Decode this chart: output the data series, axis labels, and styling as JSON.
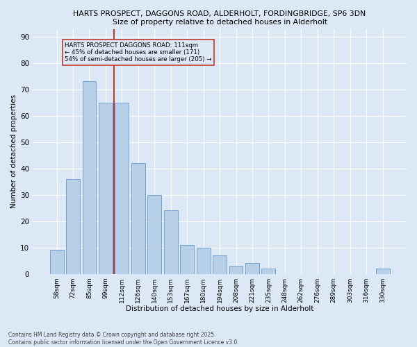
{
  "title1": "HARTS PROSPECT, DAGGONS ROAD, ALDERHOLT, FORDINGBRIDGE, SP6 3DN",
  "title2": "Size of property relative to detached houses in Alderholt",
  "xlabel": "Distribution of detached houses by size in Alderholt",
  "ylabel": "Number of detached properties",
  "categories": [
    "58sqm",
    "72sqm",
    "85sqm",
    "99sqm",
    "112sqm",
    "126sqm",
    "140sqm",
    "153sqm",
    "167sqm",
    "180sqm",
    "194sqm",
    "208sqm",
    "221sqm",
    "235sqm",
    "248sqm",
    "262sqm",
    "276sqm",
    "289sqm",
    "303sqm",
    "316sqm",
    "330sqm"
  ],
  "values": [
    9,
    36,
    73,
    65,
    65,
    42,
    30,
    24,
    11,
    10,
    7,
    3,
    4,
    2,
    0,
    0,
    0,
    0,
    0,
    0,
    2
  ],
  "bar_color": "#b8cfe8",
  "bar_edge_color": "#6699cc",
  "marker_line_color": "#c0392b",
  "annotation_box_edge": "#c0392b",
  "ylim": [
    0,
    93
  ],
  "yticks": [
    0,
    10,
    20,
    30,
    40,
    50,
    60,
    70,
    80,
    90
  ],
  "background_color": "#dce8f5",
  "grid_color": "#ffffff",
  "footnote": "Contains HM Land Registry data © Crown copyright and database right 2025.\nContains public sector information licensed under the Open Government Licence v3.0."
}
